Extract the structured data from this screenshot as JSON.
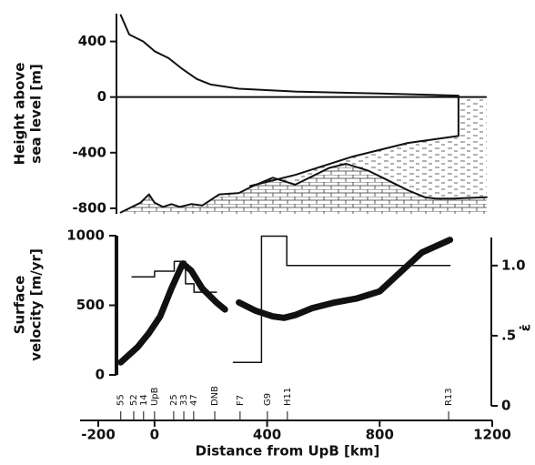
{
  "chart_data": [
    {
      "type": "profile",
      "ylabel": [
        "Height  above",
        "sea  level  [m]"
      ],
      "xlim": [
        -200,
        1200
      ],
      "ylim": [
        -840,
        600
      ],
      "yticks": [
        400,
        0,
        -400,
        -800
      ],
      "series": [
        {
          "color": "#111",
          "x": [
            -120,
            -90,
            -40,
            0,
            50,
            100,
            150,
            200,
            300,
            500,
            800,
            1000,
            1080
          ],
          "values": [
            590,
            450,
            400,
            330,
            280,
            200,
            130,
            90,
            60,
            40,
            25,
            15,
            10
          ]
        },
        {
          "color": "#111",
          "x": [
            -120,
            -50,
            -20,
            0,
            30,
            60,
            90,
            130,
            170,
            230,
            300,
            350,
            420,
            500,
            560,
            620,
            680,
            760,
            830,
            900,
            960,
            1000,
            1060,
            1180
          ],
          "values": [
            -830,
            -760,
            -700,
            -760,
            -790,
            -770,
            -790,
            -770,
            -780,
            -700,
            -690,
            -640,
            -580,
            -630,
            -570,
            -510,
            -480,
            -530,
            -600,
            -670,
            -720,
            -730,
            -730,
            -720
          ]
        },
        {
          "color": "#111",
          "x": [
            340,
            500,
            700,
            900,
            1080
          ],
          "values": [
            -640,
            -560,
            -430,
            -330,
            -280
          ]
        }
      ]
    },
    {
      "type": "dual",
      "ylabel": [
        "Surface",
        "velocity  [m/yr]"
      ],
      "y2label": "ε̇",
      "xlabel": "Distance   from   UpB   [km]",
      "xlim": [
        -200,
        1200
      ],
      "xticks": [
        -200,
        0,
        400,
        800,
        1200
      ],
      "ylim": [
        0,
        1000
      ],
      "yticks": [
        0,
        500,
        1000
      ],
      "y2lim": [
        0,
        1.2
      ],
      "y2ticks": [
        0,
        {
          "value": 0.5,
          "label": ".5"
        },
        {
          "value": 1.0,
          "label": "1.0"
        }
      ],
      "stations": {
        "names": [
          "55",
          "52",
          "14",
          "UpB",
          "25",
          "33",
          "47",
          "DNB",
          "F7",
          "G9",
          "H11",
          "R13"
        ],
        "x": [
          -120,
          -74,
          -39,
          0,
          68,
          104,
          139,
          214,
          304,
          401,
          472,
          1045
        ]
      },
      "series": [
        {
          "color": "#111",
          "width": 7,
          "x": [
            -120,
            -60,
            -20,
            20,
            60,
            100,
            130,
            170,
            220,
            250,
            null,
            300,
            360,
            420,
            460,
            500,
            560,
            640,
            720,
            800,
            880,
            950,
            1050
          ],
          "values": [
            90,
            200,
            300,
            420,
            620,
            800,
            750,
            620,
            520,
            470,
            null,
            520,
            460,
            420,
            410,
            430,
            480,
            520,
            550,
            600,
            750,
            880,
            970
          ]
        },
        {
          "color": "#111",
          "width": 1.5,
          "axis": "y2",
          "x": [
            -80,
            0,
            0,
            70,
            70,
            110,
            110,
            140,
            140,
            220,
            null,
            280,
            380,
            380,
            470,
            470,
            1050
          ],
          "values": [
            0.92,
            0.92,
            0.96,
            0.96,
            1.03,
            1.03,
            0.87,
            0.87,
            0.81,
            0.81,
            null,
            0.31,
            0.31,
            1.21,
            1.21,
            1.0,
            1.0
          ]
        }
      ]
    }
  ]
}
